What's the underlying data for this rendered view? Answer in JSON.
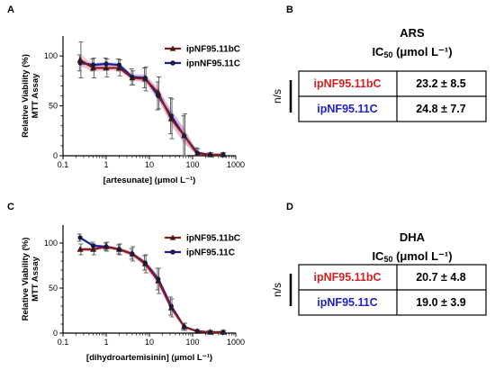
{
  "panels": {
    "A": "A",
    "B": "B",
    "C": "C",
    "D": "D"
  },
  "colors": {
    "bc": "#8B1A1A",
    "bc_band": "#e8a0b8",
    "c11": "#1a1aa0",
    "c11_band": "#a0a0e8",
    "label_red": "#d42020",
    "label_blue": "#2020c8"
  },
  "chart_data": [
    {
      "type": "line",
      "ylabel": "Relative Viability (%)",
      "ylabel2": "MTT Assay",
      "xlabel": "[artesunate] (μmol L⁻¹)",
      "xscale": "log",
      "xlim": [
        0.1,
        1000
      ],
      "ylim": [
        0,
        120
      ],
      "xticks": [
        "0.1",
        "1",
        "10",
        "100",
        "1000"
      ],
      "yticks": [
        "0",
        "50",
        "100"
      ],
      "legend": "top-right",
      "series": [
        {
          "name": "ipNF95.11bC",
          "marker": "triangle",
          "x": [
            0.25,
            0.5,
            1,
            2,
            4,
            8,
            16,
            32,
            64,
            128,
            256,
            512
          ],
          "y": [
            96,
            88,
            88,
            88,
            78,
            77,
            63,
            37,
            20,
            2,
            1,
            1
          ],
          "err": [
            18,
            10,
            9,
            8,
            7,
            12,
            16,
            20,
            22,
            5,
            2,
            2
          ]
        },
        {
          "name": "ipnNF95.11C",
          "marker": "circle",
          "x": [
            0.25,
            0.5,
            1,
            2,
            4,
            8,
            16,
            32,
            64,
            128,
            256,
            512
          ],
          "y": [
            93,
            91,
            92,
            91,
            79,
            78,
            60,
            40,
            20,
            3,
            1,
            1
          ],
          "err": [
            8,
            6,
            6,
            6,
            8,
            10,
            14,
            18,
            20,
            5,
            2,
            2
          ]
        }
      ]
    },
    {
      "type": "line",
      "ylabel": "Relative Viability (%)",
      "ylabel2": "MTT Assay",
      "xlabel": "[dihydroartemisinin] (μmol L⁻¹)",
      "xscale": "log",
      "xlim": [
        0.1,
        1000
      ],
      "ylim": [
        0,
        120
      ],
      "xticks": [
        "0.1",
        "1",
        "10",
        "100",
        "1000"
      ],
      "yticks": [
        "0",
        "50",
        "100"
      ],
      "legend": "top-right",
      "series": [
        {
          "name": "ipNF95.11bC",
          "marker": "triangle",
          "x": [
            0.25,
            0.5,
            1,
            2,
            4,
            8,
            16,
            32,
            64,
            128,
            256,
            512
          ],
          "y": [
            93,
            93,
            96,
            93,
            88,
            77,
            58,
            28,
            7,
            2,
            1,
            1
          ],
          "err": [
            6,
            6,
            5,
            6,
            8,
            10,
            14,
            10,
            4,
            2,
            2,
            2
          ]
        },
        {
          "name": "ipNF95.11C",
          "marker": "circle",
          "x": [
            0.25,
            0.5,
            1,
            2,
            4,
            8,
            16,
            32,
            64,
            128,
            256,
            512
          ],
          "y": [
            106,
            97,
            96,
            93,
            88,
            78,
            60,
            30,
            7,
            2,
            1,
            1
          ],
          "err": [
            4,
            4,
            4,
            5,
            6,
            8,
            12,
            10,
            4,
            2,
            2,
            2
          ]
        }
      ]
    }
  ],
  "tables": [
    {
      "drug": "ARS",
      "header": "IC",
      "header_sub": "50",
      "header_unit": " (μmol L⁻¹)",
      "ns": "n/s",
      "rows": [
        {
          "label": "ipNF95.11bC",
          "value": "23.2 ± 8.5"
        },
        {
          "label": "ipNF95.11C",
          "value": "24.8 ± 7.7"
        }
      ]
    },
    {
      "drug": "DHA",
      "header": "IC",
      "header_sub": "50",
      "header_unit": " (μmol L⁻¹)",
      "ns": "n/s",
      "rows": [
        {
          "label": "ipNF95.11bC",
          "value": "20.7 ± 4.8"
        },
        {
          "label": "ipNF95.11C",
          "value": "19.0 ± 3.9"
        }
      ]
    }
  ]
}
